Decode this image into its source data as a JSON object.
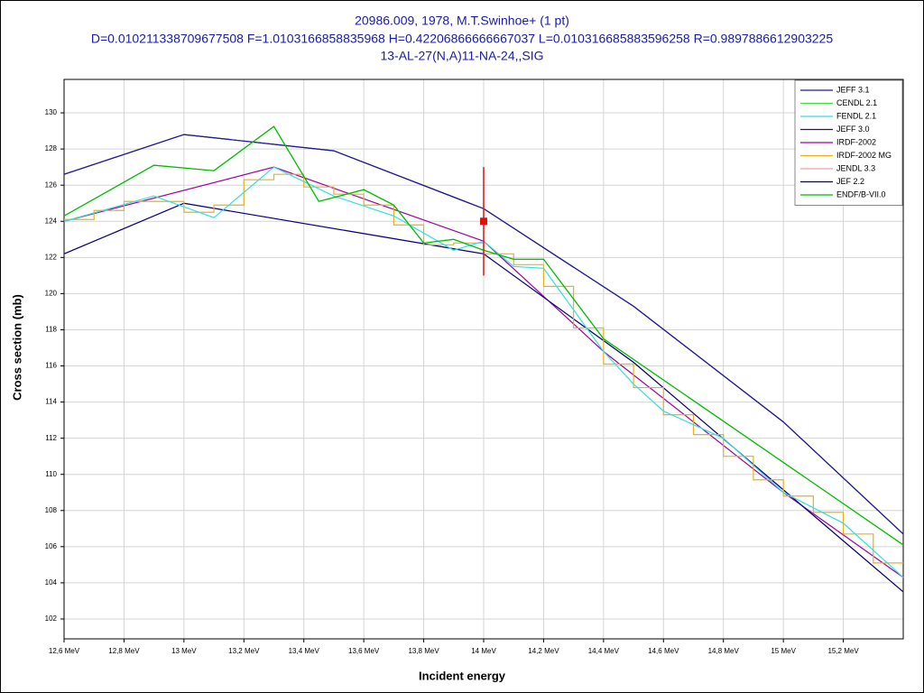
{
  "chart_data": {
    "type": "line",
    "title": "20986.009, 1978, M.T.Swinhoe+ (1 pt)",
    "subtitle": "D=0.010211338709677508 F=1.0103166858835968 H=0.42206866666667037 L=0.010316685883596258 R=0.9897886612903225",
    "subtitle2": "13-AL-27(N,A)11-NA-24,,SIG",
    "xlabel": "Incident energy",
    "ylabel": "Cross section (mb)",
    "xlim": [
      12.6,
      15.4
    ],
    "ylim": [
      100.9,
      131.85
    ],
    "xticks": [
      {
        "value": 12.6,
        "label": "12,6 MeV"
      },
      {
        "value": 12.8,
        "label": "12,8 MeV"
      },
      {
        "value": 13,
        "label": "13 MeV"
      },
      {
        "value": 13.2,
        "label": "13,2 MeV"
      },
      {
        "value": 13.4,
        "label": "13,4 MeV"
      },
      {
        "value": 13.6,
        "label": "13,6 MeV"
      },
      {
        "value": 13.8,
        "label": "13,8 MeV"
      },
      {
        "value": 14,
        "label": "14 MeV"
      },
      {
        "value": 14.2,
        "label": "14,2 MeV"
      },
      {
        "value": 14.4,
        "label": "14,4 MeV"
      },
      {
        "value": 14.6,
        "label": "14,6 MeV"
      },
      {
        "value": 14.8,
        "label": "14,8 MeV"
      },
      {
        "value": 15,
        "label": "15 MeV"
      },
      {
        "value": 15.2,
        "label": "15,2 MeV"
      }
    ],
    "yticks": [
      102,
      104,
      106,
      108,
      110,
      112,
      114,
      116,
      118,
      120,
      122,
      124,
      126,
      128,
      130
    ],
    "grid": true,
    "legend": "top-right",
    "series": [
      {
        "name": "JEFF 3.1",
        "color": "#1c1c9c",
        "x": [
          12.6,
          13,
          13.5,
          14,
          14.5,
          15,
          15.4
        ],
        "values": [
          126.6,
          128.8,
          127.9,
          124.7,
          119.3,
          112.9,
          106.7
        ]
      },
      {
        "name": "CENDL 2.1",
        "color": "#44dd44",
        "x": [
          12.6,
          12.9,
          13.1,
          13.3,
          13.45,
          13.6,
          13.7,
          13.8,
          13.9,
          14,
          14.1,
          14.2,
          14.4,
          15.4
        ],
        "values": [
          124.3,
          127.1,
          126.8,
          129.25,
          125.1,
          125.75,
          124.9,
          122.8,
          123,
          122.4,
          121.9,
          121.9,
          117.5,
          106.1
        ]
      },
      {
        "name": "FENDL 2.1",
        "color": "#33e0e0",
        "x": [
          12.6,
          12.9,
          13.1,
          13.3,
          13.5,
          13.7,
          13.9,
          14,
          14.1,
          14.2,
          14.4,
          14.5,
          14.6,
          14.8,
          15,
          15.2,
          15.4
        ],
        "values": [
          124,
          125.4,
          124.2,
          127,
          125.4,
          124.3,
          122.4,
          122.9,
          121.5,
          121.4,
          116.8,
          115,
          113.5,
          112,
          109,
          107.3,
          104.3
        ]
      },
      {
        "name": "JEFF 3.0",
        "color": "#3a0a6a",
        "x": [
          12.6,
          13,
          13.5,
          14,
          14.5,
          15,
          15.4
        ],
        "values": [
          126.6,
          128.8,
          127.9,
          124.7,
          119.3,
          112.9,
          106.7
        ]
      },
      {
        "name": "IRDF-2002",
        "color": "#a000a0",
        "x": [
          12.6,
          13.3,
          14,
          14.4,
          15,
          15.4
        ],
        "values": [
          124,
          127,
          122.9,
          116.8,
          109,
          104.3
        ]
      },
      {
        "name": "IRDF-2002 MG",
        "color": "#e8b020",
        "type": "step",
        "bins": [
          12.6,
          12.7,
          12.8,
          12.9,
          13,
          13.1,
          13.2,
          13.3,
          13.4,
          13.5,
          13.6,
          13.7,
          13.8,
          13.9,
          14,
          14.1,
          14.2,
          14.3,
          14.4,
          14.5,
          14.6,
          14.7,
          14.8,
          14.9,
          15,
          15.1,
          15.2,
          15.3,
          15.4
        ],
        "values": [
          124.1,
          124.6,
          125.1,
          125.1,
          124.5,
          124.9,
          126.3,
          126.6,
          125.9,
          125.5,
          124.9,
          123.8,
          122.7,
          122.8,
          122.2,
          121.6,
          120.4,
          118.1,
          116.1,
          114.8,
          113.3,
          112.2,
          111,
          109.7,
          108.8,
          107.9,
          106.7,
          105.1
        ]
      },
      {
        "name": "JENDL 3.3",
        "color": "#f0a0a0",
        "x": [
          12.6,
          13,
          14,
          14.5,
          15.4
        ],
        "values": [
          122.2,
          125,
          122.2,
          116.2,
          103.5
        ]
      },
      {
        "name": "JEF 2.2",
        "color": "#000080",
        "x": [
          12.6,
          13,
          14,
          14.5,
          15.4
        ],
        "values": [
          122.2,
          125,
          122.2,
          116.2,
          103.5
        ]
      },
      {
        "name": "ENDF/B-VII.0",
        "color": "#00bb00",
        "x": [
          12.6,
          12.9,
          13.1,
          13.3,
          13.45,
          13.6,
          13.7,
          13.8,
          13.9,
          14,
          14.1,
          14.2,
          14.4,
          15.4
        ],
        "values": [
          124.3,
          127.1,
          126.8,
          129.25,
          125.1,
          125.75,
          124.9,
          122.8,
          123,
          122.4,
          121.9,
          121.9,
          117.5,
          106.1
        ]
      }
    ],
    "measurement": {
      "x": 14,
      "y": 124,
      "yerr": 3,
      "color": "#e01010"
    }
  }
}
